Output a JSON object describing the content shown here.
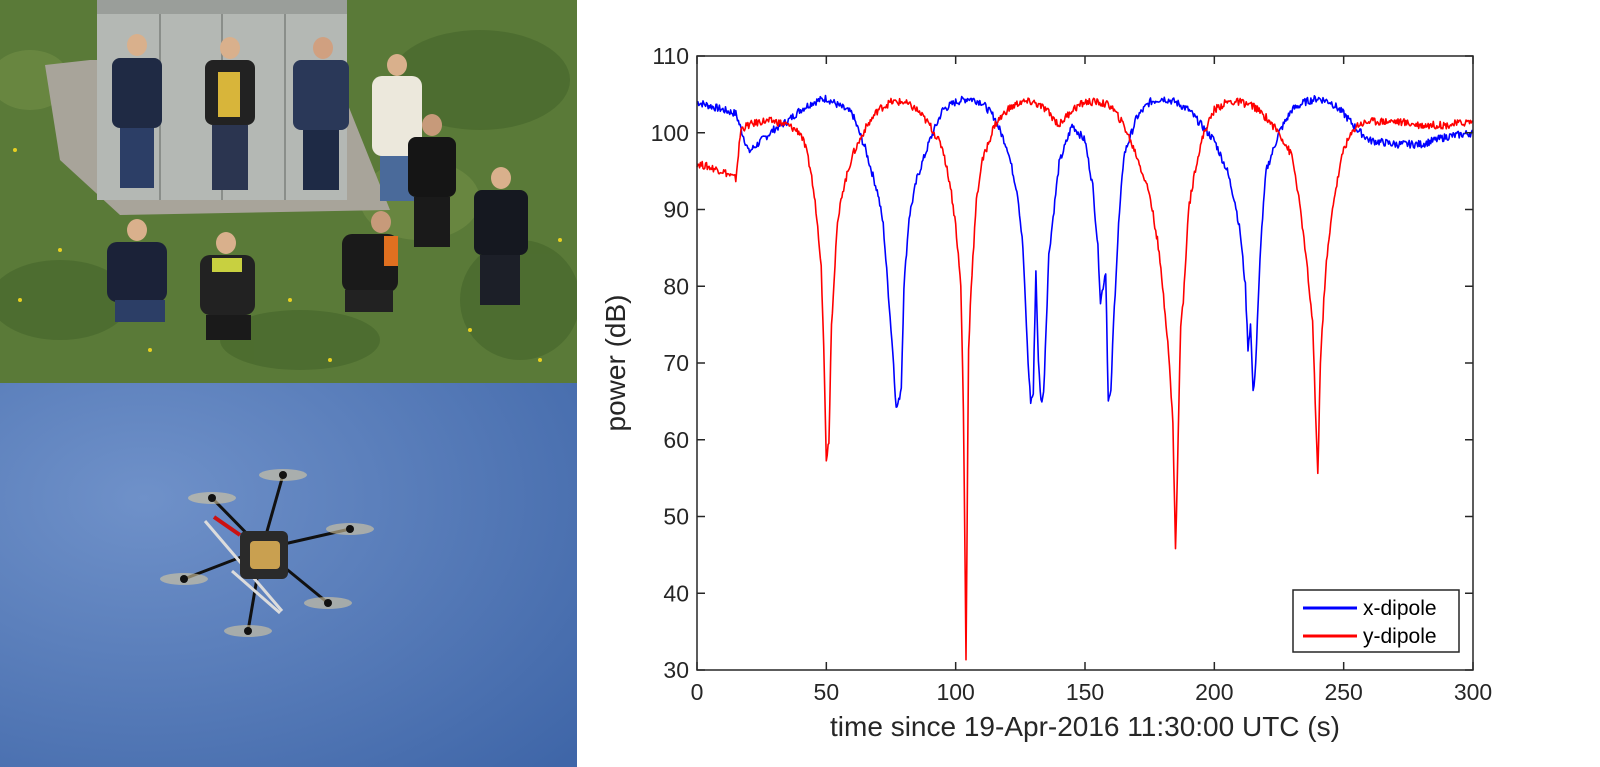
{
  "photos": {
    "top": "aerial photo of a group of people standing on grass next to an electrical cabinet",
    "bottom": "hexacopter drone flying against a blue sky"
  },
  "chart_data": {
    "type": "line",
    "title": "",
    "xlabel": "time since 19-Apr-2016 11:30:00 UTC (s)",
    "ylabel": "power (dB)",
    "xlim": [
      0,
      300
    ],
    "ylim": [
      30,
      110
    ],
    "xticks": [
      "0",
      "50",
      "100",
      "150",
      "200",
      "250",
      "300"
    ],
    "yticks": [
      "30",
      "40",
      "50",
      "60",
      "70",
      "80",
      "90",
      "100",
      "110"
    ],
    "grid": false,
    "legend_position": "bottom-right",
    "series": [
      {
        "name": "x-dipole",
        "color": "#0000ff",
        "x": [
          0,
          5,
          10,
          15,
          17,
          20,
          25,
          30,
          35,
          40,
          45,
          50,
          55,
          60,
          65,
          70,
          72,
          74,
          76,
          77,
          78,
          79,
          80,
          82,
          85,
          90,
          95,
          100,
          105,
          110,
          115,
          120,
          124,
          126,
          128,
          129,
          130,
          131,
          132,
          133,
          134,
          136,
          140,
          145,
          150,
          153,
          155,
          156,
          158,
          159,
          160,
          161,
          163,
          165,
          170,
          175,
          180,
          185,
          190,
          195,
          200,
          205,
          208,
          210,
          212,
          213,
          214,
          215,
          216,
          218,
          220,
          225,
          230,
          235,
          240,
          245,
          250,
          255,
          260,
          270,
          280,
          290,
          300
        ],
        "y": [
          104,
          103.5,
          103,
          102.5,
          100.5,
          97.5,
          99,
          100.5,
          101.5,
          103,
          104,
          104.5,
          103.5,
          102.5,
          98,
          92,
          88,
          79,
          70,
          64,
          65,
          67,
          80,
          89,
          94,
          99,
          103,
          104,
          104.5,
          104,
          102,
          98,
          92,
          85,
          70,
          65,
          66,
          82,
          70,
          65,
          66,
          84,
          96,
          101,
          99,
          93,
          85,
          78,
          82,
          65,
          66,
          75,
          88,
          97,
          102,
          104,
          104.5,
          104,
          103,
          101,
          99,
          95,
          91,
          87,
          80,
          72,
          75,
          66,
          70,
          86,
          95,
          100,
          103,
          104,
          104.5,
          104,
          102.5,
          100.5,
          99,
          98.5,
          98.5,
          99.5,
          100
        ]
      },
      {
        "name": "y-dipole",
        "color": "#ff0000",
        "x": [
          0,
          5,
          10,
          15,
          17,
          20,
          25,
          30,
          35,
          40,
          42,
          44,
          46,
          48,
          49,
          50,
          51,
          52,
          54,
          56,
          60,
          65,
          70,
          75,
          80,
          85,
          90,
          95,
          98,
          100,
          102,
          103,
          104,
          105,
          106,
          108,
          110,
          115,
          120,
          125,
          130,
          135,
          140,
          145,
          150,
          155,
          160,
          165,
          170,
          175,
          178,
          180,
          182,
          184,
          185,
          186,
          187,
          188,
          190,
          193,
          196,
          200,
          205,
          210,
          215,
          220,
          225,
          230,
          232,
          234,
          236,
          238,
          239,
          240,
          241,
          243,
          246,
          250,
          255,
          260,
          270,
          280,
          290,
          300
        ],
        "y": [
          96,
          95.5,
          95,
          94,
          100.5,
          101,
          101.5,
          101.5,
          101,
          100,
          98,
          95,
          90,
          83,
          72,
          57.5,
          60,
          75,
          87,
          92,
          97,
          100.5,
          103,
          104,
          104,
          103,
          101,
          98,
          93,
          88,
          80,
          64,
          31.5,
          72,
          80,
          91,
          96,
          101,
          103,
          104,
          104,
          103,
          101,
          103,
          104,
          104,
          103.5,
          101,
          97,
          92,
          86,
          80,
          73,
          62,
          45.5,
          60,
          75,
          78,
          90,
          96,
          100,
          103,
          104,
          104,
          103.5,
          102,
          100,
          97,
          93,
          88,
          82,
          75,
          65,
          55.5,
          70,
          82,
          91,
          98,
          101,
          101.5,
          101.5,
          101,
          101,
          101.5
        ]
      }
    ]
  }
}
